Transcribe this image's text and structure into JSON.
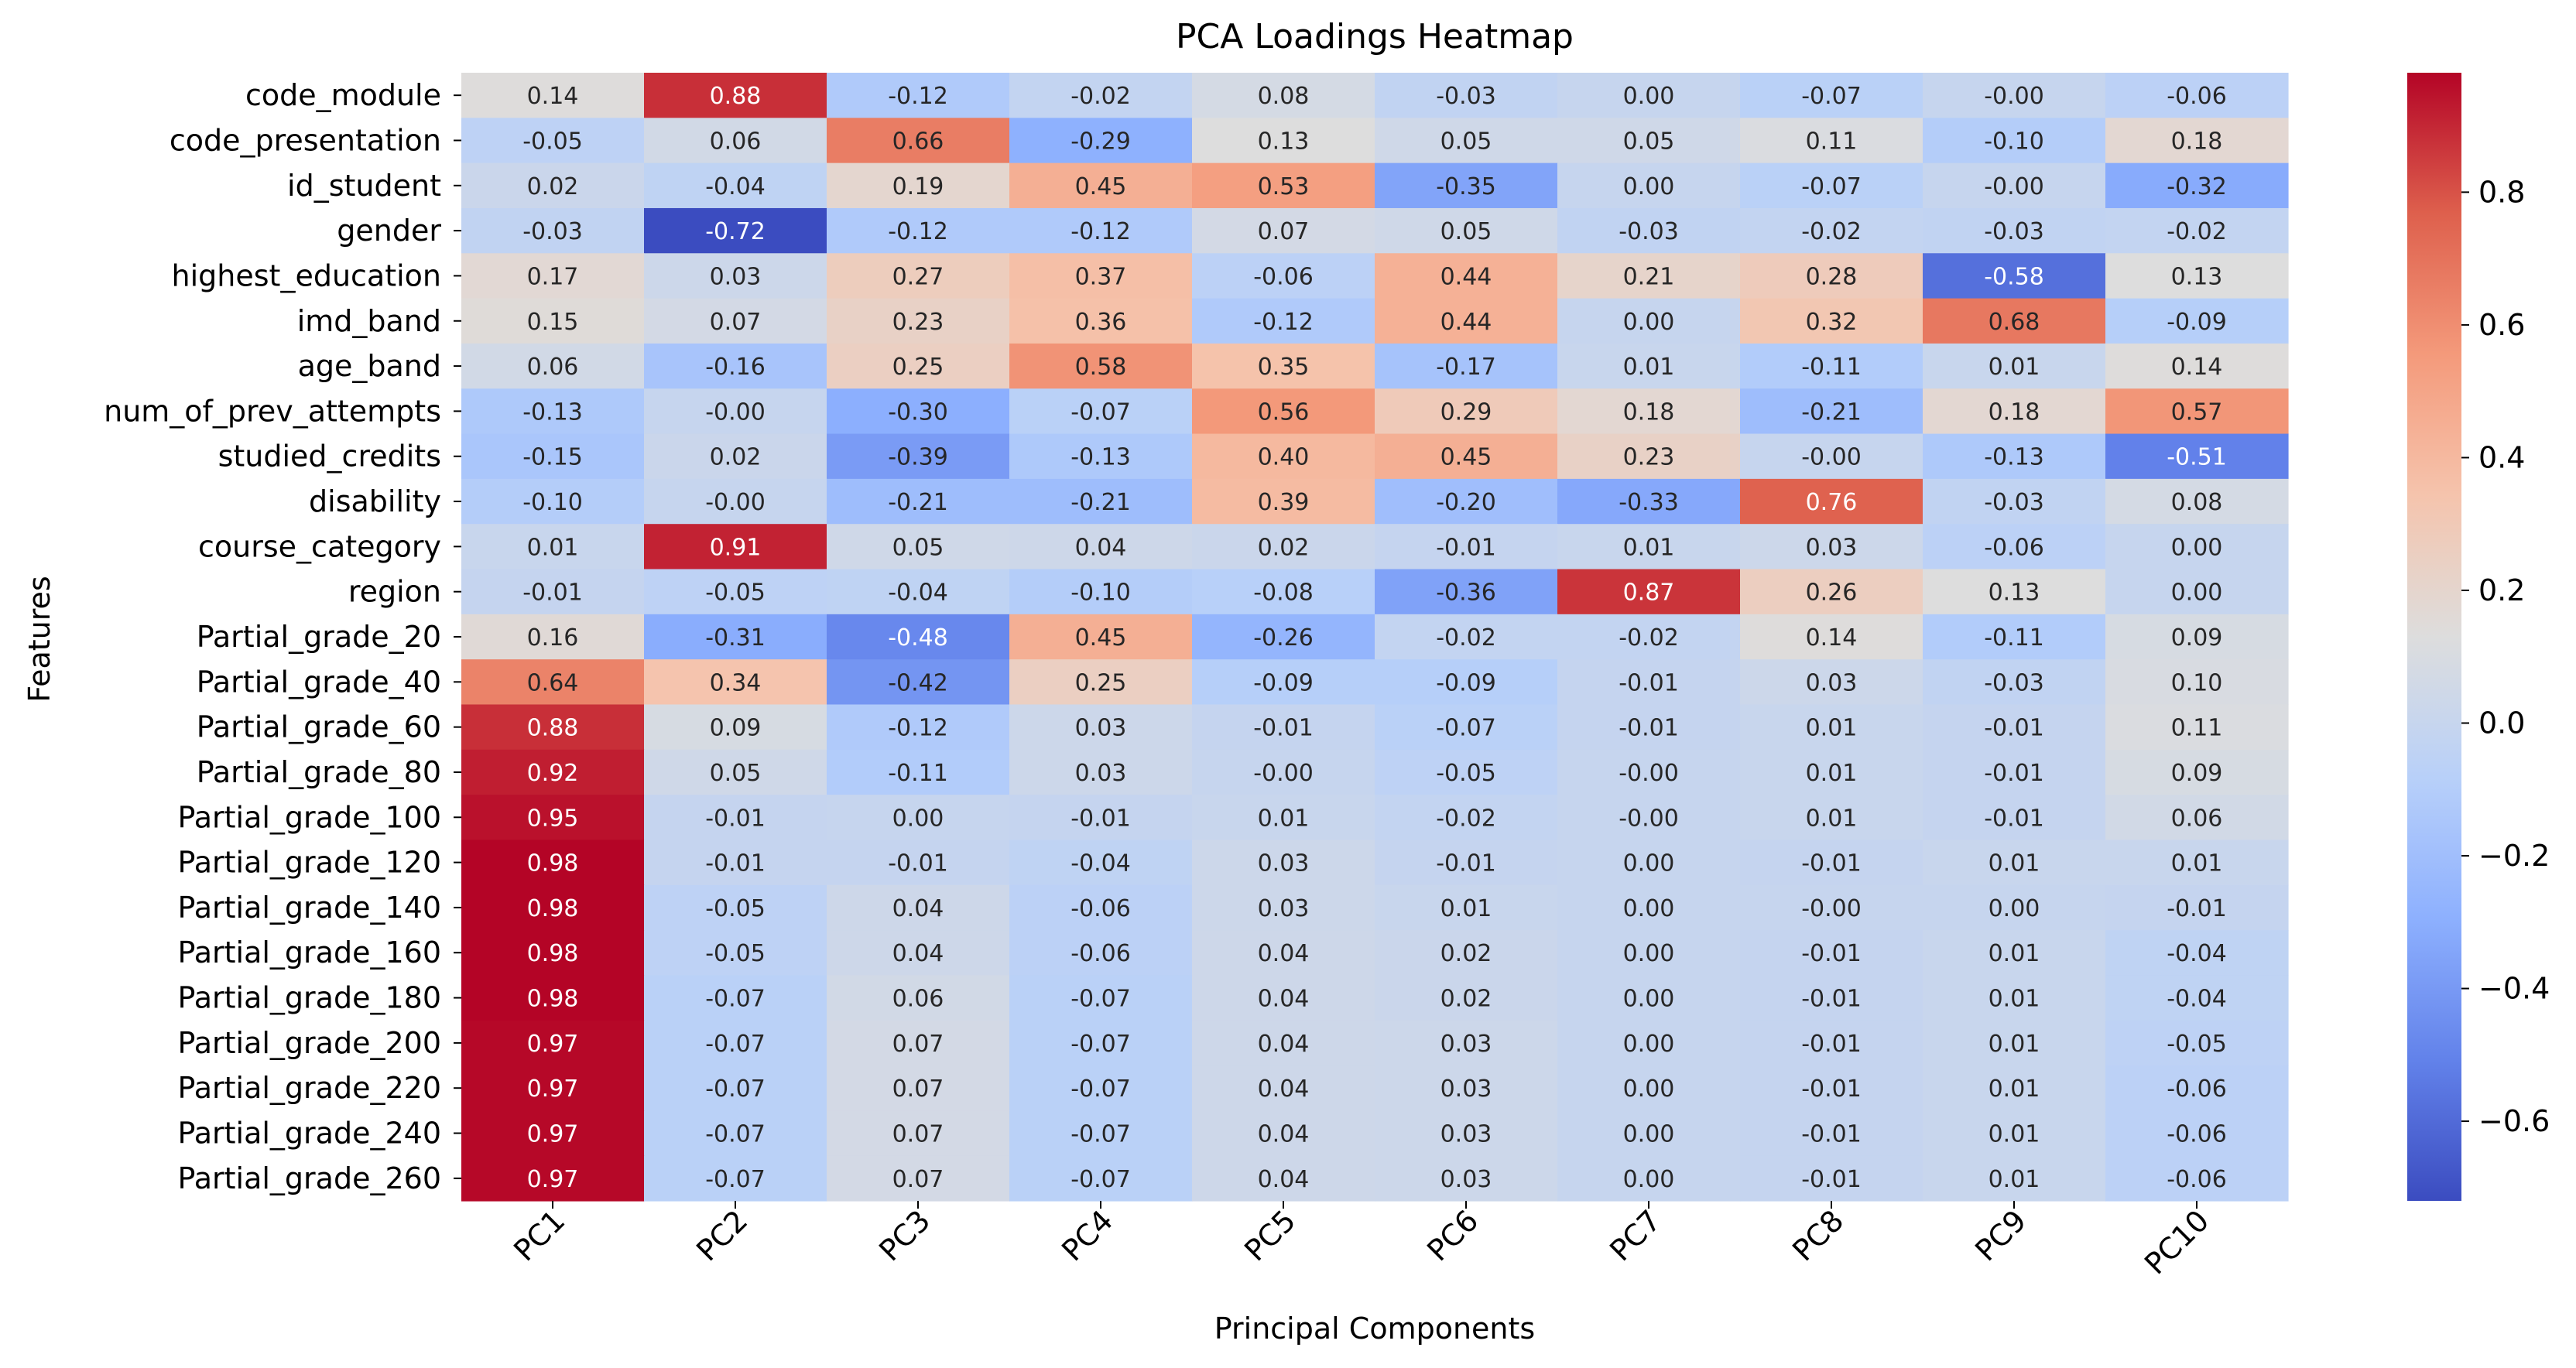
{
  "chart_data": {
    "type": "heatmap",
    "title": "PCA Loadings Heatmap",
    "xlabel": "Principal Components",
    "ylabel": "Features",
    "columns": [
      "PC1",
      "PC2",
      "PC3",
      "PC4",
      "PC5",
      "PC6",
      "PC7",
      "PC8",
      "PC9",
      "PC10"
    ],
    "rows": [
      "code_module",
      "code_presentation",
      "id_student",
      "gender",
      "highest_education",
      "imd_band",
      "age_band",
      "num_of_prev_attempts",
      "studied_credits",
      "disability",
      "course_category",
      "region",
      "Partial_grade_20",
      "Partial_grade_40",
      "Partial_grade_60",
      "Partial_grade_80",
      "Partial_grade_100",
      "Partial_grade_120",
      "Partial_grade_140",
      "Partial_grade_160",
      "Partial_grade_180",
      "Partial_grade_200",
      "Partial_grade_220",
      "Partial_grade_240",
      "Partial_grade_260"
    ],
    "values": [
      [
        0.14,
        0.88,
        -0.12,
        -0.02,
        0.08,
        -0.03,
        0.0,
        -0.07,
        -0.0,
        -0.06
      ],
      [
        -0.05,
        0.06,
        0.66,
        -0.29,
        0.13,
        0.05,
        0.05,
        0.11,
        -0.1,
        0.18
      ],
      [
        0.02,
        -0.04,
        0.19,
        0.45,
        0.53,
        -0.35,
        0.0,
        -0.07,
        -0.0,
        -0.32
      ],
      [
        -0.03,
        -0.72,
        -0.12,
        -0.12,
        0.07,
        0.05,
        -0.03,
        -0.02,
        -0.03,
        -0.02
      ],
      [
        0.17,
        0.03,
        0.27,
        0.37,
        -0.06,
        0.44,
        0.21,
        0.28,
        -0.58,
        0.13
      ],
      [
        0.15,
        0.07,
        0.23,
        0.36,
        -0.12,
        0.44,
        0.0,
        0.32,
        0.68,
        -0.09
      ],
      [
        0.06,
        -0.16,
        0.25,
        0.58,
        0.35,
        -0.17,
        0.01,
        -0.11,
        0.01,
        0.14
      ],
      [
        -0.13,
        -0.0,
        -0.3,
        -0.07,
        0.56,
        0.29,
        0.18,
        -0.21,
        0.18,
        0.57
      ],
      [
        -0.15,
        0.02,
        -0.39,
        -0.13,
        0.4,
        0.45,
        0.23,
        -0.0,
        -0.13,
        -0.51
      ],
      [
        -0.1,
        -0.0,
        -0.21,
        -0.21,
        0.39,
        -0.2,
        -0.33,
        0.76,
        -0.03,
        0.08
      ],
      [
        0.01,
        0.91,
        0.05,
        0.04,
        0.02,
        -0.01,
        0.01,
        0.03,
        -0.06,
        0.0
      ],
      [
        -0.01,
        -0.05,
        -0.04,
        -0.1,
        -0.08,
        -0.36,
        0.87,
        0.26,
        0.13,
        0.0
      ],
      [
        0.16,
        -0.31,
        -0.48,
        0.45,
        -0.26,
        -0.02,
        -0.02,
        0.14,
        -0.11,
        0.09
      ],
      [
        0.64,
        0.34,
        -0.42,
        0.25,
        -0.09,
        -0.09,
        -0.01,
        0.03,
        -0.03,
        0.1
      ],
      [
        0.88,
        0.09,
        -0.12,
        0.03,
        -0.01,
        -0.07,
        -0.01,
        0.01,
        -0.01,
        0.11
      ],
      [
        0.92,
        0.05,
        -0.11,
        0.03,
        -0.0,
        -0.05,
        -0.0,
        0.01,
        -0.01,
        0.09
      ],
      [
        0.95,
        -0.01,
        0.0,
        -0.01,
        0.01,
        -0.02,
        -0.0,
        0.01,
        -0.01,
        0.06
      ],
      [
        0.98,
        -0.01,
        -0.01,
        -0.04,
        0.03,
        -0.01,
        0.0,
        -0.01,
        0.01,
        0.01
      ],
      [
        0.98,
        -0.05,
        0.04,
        -0.06,
        0.03,
        0.01,
        0.0,
        -0.0,
        0.0,
        -0.01
      ],
      [
        0.98,
        -0.05,
        0.04,
        -0.06,
        0.04,
        0.02,
        0.0,
        -0.01,
        0.01,
        -0.04
      ],
      [
        0.98,
        -0.07,
        0.06,
        -0.07,
        0.04,
        0.02,
        0.0,
        -0.01,
        0.01,
        -0.04
      ],
      [
        0.97,
        -0.07,
        0.07,
        -0.07,
        0.04,
        0.03,
        0.0,
        -0.01,
        0.01,
        -0.05
      ],
      [
        0.97,
        -0.07,
        0.07,
        -0.07,
        0.04,
        0.03,
        0.0,
        -0.01,
        0.01,
        -0.06
      ],
      [
        0.97,
        -0.07,
        0.07,
        -0.07,
        0.04,
        0.03,
        0.0,
        -0.01,
        0.01,
        -0.06
      ],
      [
        0.97,
        -0.07,
        0.07,
        -0.07,
        0.04,
        0.03,
        0.0,
        -0.01,
        0.01,
        -0.06
      ]
    ],
    "colormap": "coolwarm",
    "color_range": [
      -0.72,
      0.98
    ],
    "colorbar_ticks": [
      0.8,
      0.6,
      0.4,
      0.2,
      0.0,
      -0.2,
      -0.4,
      -0.6
    ],
    "colorbar_tick_labels": [
      "0.8",
      "0.6",
      "0.4",
      "0.2",
      "0.0",
      "−0.2",
      "−0.4",
      "−0.6"
    ],
    "grid": false,
    "annotated": true
  }
}
